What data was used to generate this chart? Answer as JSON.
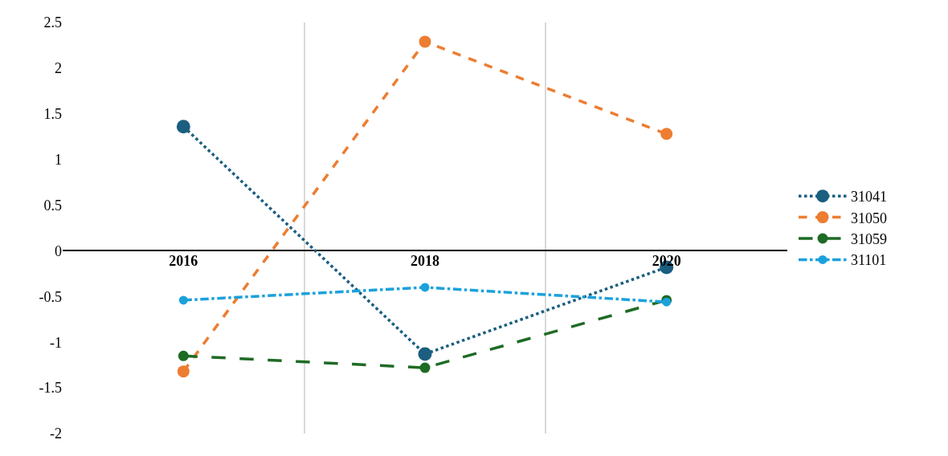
{
  "chart_data": {
    "type": "line",
    "categories": [
      "2016",
      "2018",
      "2020"
    ],
    "series": [
      {
        "name": "31041",
        "color": "#1b5e80",
        "line_style": "dotted",
        "values": [
          1.36,
          -1.13,
          -0.18
        ]
      },
      {
        "name": "31050",
        "color": "#ed7d31",
        "line_style": "dashed",
        "values": [
          -1.32,
          2.29,
          1.28
        ]
      },
      {
        "name": "31059",
        "color": "#1e6b24",
        "line_style": "longdash",
        "values": [
          -1.15,
          -1.28,
          -0.54
        ]
      },
      {
        "name": "31101",
        "color": "#1ba1dc",
        "line_style": "dashdot",
        "values": [
          -0.54,
          -0.4,
          -0.56
        ]
      }
    ],
    "ylim": [
      -2,
      2.5
    ],
    "yticks": [
      -2,
      -1.5,
      -1,
      -0.5,
      0,
      0.5,
      1,
      1.5,
      2,
      2.5
    ],
    "grid": "x",
    "legend": "right",
    "marker": "circle"
  }
}
